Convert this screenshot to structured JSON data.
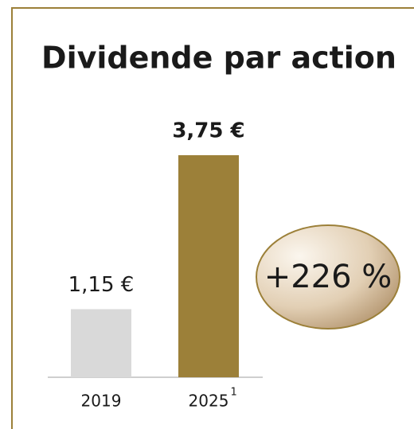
{
  "chart_data": {
    "type": "bar",
    "title": "Dividende par action",
    "categories": [
      "2019",
      "2025"
    ],
    "category_footnotes": [
      null,
      "1"
    ],
    "values": [
      1.15,
      3.75
    ],
    "value_labels": [
      "1,15 €",
      "3,75 €"
    ],
    "colors": [
      "#d9d9d9",
      "#9c8039"
    ],
    "ylim": [
      0,
      3.75
    ],
    "annotation": "+226 %"
  }
}
